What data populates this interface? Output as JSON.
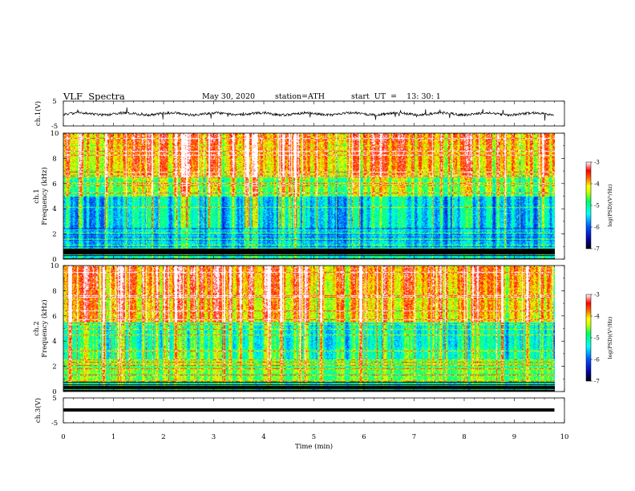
{
  "chart_data": {
    "type": "heatmap",
    "header": {
      "title": "VLF  Spectra",
      "date": "May 30, 2020",
      "station": "station=ATH",
      "start_time": "start  UT  =    13: 30: 1"
    },
    "x": {
      "label": "Time  (min)",
      "range": [
        0,
        10
      ],
      "ticks": [
        "0",
        "1",
        "2",
        "3",
        "4",
        "5",
        "6",
        "7",
        "8",
        "9",
        "10"
      ],
      "data_end_min": 9.8
    },
    "panels": [
      {
        "id": "ch1-voltage",
        "type": "line",
        "ylabel": "ch.1(V)",
        "ylim": [
          -5,
          5
        ],
        "ticks": [
          "5",
          "-5"
        ]
      },
      {
        "id": "ch1-spectrogram",
        "type": "heatmap",
        "ylabel": "ch.1\nFrequency  (kHz)",
        "ylim": [
          0,
          10
        ],
        "ticks": [
          "0",
          "2",
          "4",
          "6",
          "8",
          "10"
        ]
      },
      {
        "id": "ch2-spectrogram",
        "type": "heatmap",
        "ylabel": "ch.2\nFrequency  (kHz)",
        "ylim": [
          0,
          10
        ],
        "ticks": [
          "0",
          "2",
          "4",
          "6",
          "8",
          "10"
        ]
      },
      {
        "id": "ch3-voltage",
        "type": "line",
        "ylabel": "ch.3(V)",
        "ylim": [
          -5,
          5
        ],
        "ticks": [
          "5",
          "-5"
        ]
      }
    ],
    "colorbars": [
      {
        "label": "log(PSD)(V²/Hz)",
        "range": [
          -7,
          -3
        ],
        "ticks": [
          "-3",
          "-4",
          "-5",
          "-6",
          "-7"
        ]
      },
      {
        "label": "log(PSD)(V²/Hz)",
        "range": [
          -7,
          -3
        ],
        "ticks": [
          "-3",
          "-4",
          "-5",
          "-6",
          "-7"
        ]
      }
    ],
    "colormap": [
      "#000000",
      "#0000a0",
      "#0050ff",
      "#00ffff",
      "#00ff60",
      "#c8ff00",
      "#ffff00",
      "#ff6000",
      "#ff0000",
      "#ffffff"
    ]
  }
}
